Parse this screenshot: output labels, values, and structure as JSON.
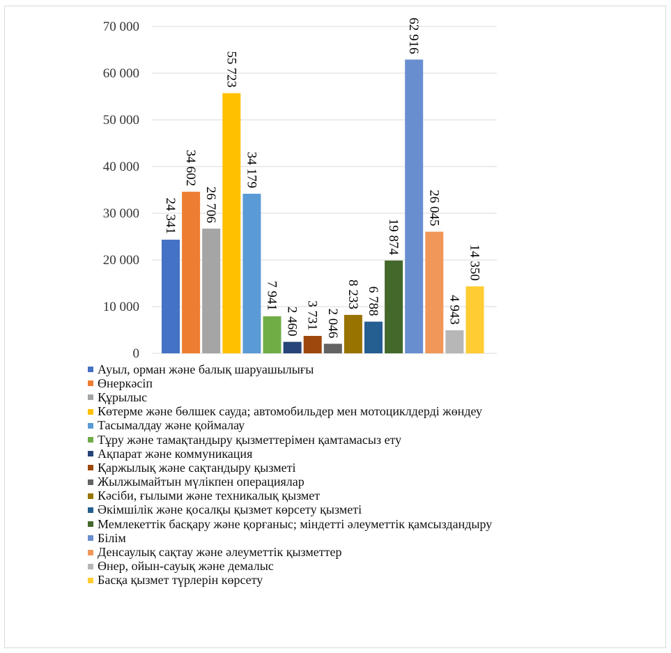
{
  "chart_data": {
    "type": "bar",
    "ylim": [
      0,
      70000
    ],
    "yticks": [
      0,
      10000,
      20000,
      30000,
      40000,
      50000,
      60000,
      70000
    ],
    "ytick_labels": [
      "0",
      "10 000",
      "20 000",
      "30 000",
      "40 000",
      "50 000",
      "60 000",
      "70 000"
    ],
    "grid": true,
    "legend_position": "bottom",
    "series": [
      {
        "name": "Ауыл, орман және балық шаруашылығы",
        "value": 24341,
        "label": "24 341",
        "color": "#4472C4"
      },
      {
        "name": "Өнеркәсіп",
        "value": 34602,
        "label": "34 602",
        "color": "#ED7D31"
      },
      {
        "name": "Құрылыс",
        "value": 26706,
        "label": "26 706",
        "color": "#A5A5A5"
      },
      {
        "name": "Көтерме және бөлшек сауда; автомобильдер мен мотоциклдерді жөндеу",
        "value": 55723,
        "label": "55 723",
        "color": "#FFC000"
      },
      {
        "name": "Тасымалдау және қоймалау",
        "value": 34179,
        "label": "34 179",
        "color": "#5B9BD5"
      },
      {
        "name": "Тұру және тамақтандыру қызметтерімен қамтамасыз ету",
        "value": 7941,
        "label": "7 941",
        "color": "#70AD47"
      },
      {
        "name": "Ақпарат және коммуникация",
        "value": 2460,
        "label": "2 460",
        "color": "#264478"
      },
      {
        "name": "Қаржылық және сақтандыру қызметі",
        "value": 3731,
        "label": "3 731",
        "color": "#9E480E"
      },
      {
        "name": "Жылжымайтын мүлікпен операциялар",
        "value": 2046,
        "label": "2 046",
        "color": "#636363"
      },
      {
        "name": "Кәсіби, ғылыми және техникалық қызмет",
        "value": 8233,
        "label": "8 233",
        "color": "#997300"
      },
      {
        "name": "Әкімшілік және қосалқы қызмет көрсету қызметі",
        "value": 6788,
        "label": "6 788",
        "color": "#255E91"
      },
      {
        "name": "Мемлекеттік басқару және қорғаныс; міндетті әлеуметтік қамсыздандыру",
        "value": 19874,
        "label": "19 874",
        "color": "#43682B"
      },
      {
        "name": "Білім",
        "value": 62916,
        "label": "62 916",
        "color": "#698ED0"
      },
      {
        "name": "Денсаулық сақтау және әлеуметтік қызметтер",
        "value": 26045,
        "label": "26 045",
        "color": "#F1975A"
      },
      {
        "name": "Өнер, ойын-сауық және демалыс",
        "value": 4943,
        "label": "4 943",
        "color": "#B7B7B7"
      },
      {
        "name": "Басқа қызмет түрлерін көрсету",
        "value": 14350,
        "label": "14 350",
        "color": "#FFCD33"
      }
    ]
  }
}
